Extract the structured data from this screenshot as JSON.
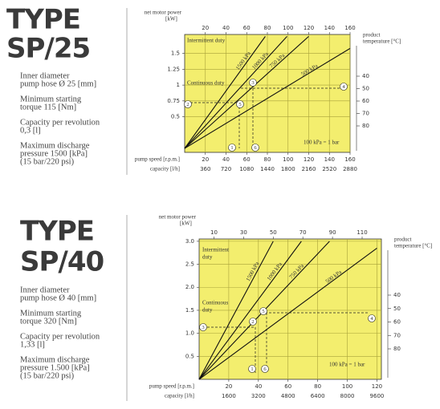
{
  "sections": [
    {
      "title": [
        "TYPE",
        "SP/25"
      ],
      "specs": [
        [
          "Inner diameter",
          "pump hose Ø 25 [mm]"
        ],
        [
          "Minimum starting",
          "torque 115 [Nm]"
        ],
        [
          "Capacity per revolution",
          "0,3 [l]"
        ],
        [
          "Maximum discharge",
          "pressure 1500 [kPa]",
          "(15 bar/220 psi)"
        ]
      ],
      "chart": {
        "power_label": "net motor power",
        "power_unit": "[kW]",
        "xlim": [
          0,
          160
        ],
        "ylim": [
          0,
          1.8
        ],
        "yticks": [
          0.5,
          0.75,
          1,
          1.25,
          1.5
        ],
        "top_ticks": [
          20,
          40,
          60,
          80,
          100,
          120,
          140,
          160
        ],
        "speed_label": "pump speed [r.p.m.]",
        "xticks": [
          20,
          40,
          60,
          80,
          100,
          120,
          140,
          160
        ],
        "capacity_label": "capacity [l/h]",
        "capacity_ticks": [
          360,
          720,
          1080,
          1440,
          1800,
          2160,
          2520,
          2880
        ],
        "temp_label": "product",
        "temp_unit": "temperature [°C]",
        "temp_ticks": [
          40,
          50,
          60,
          70,
          80
        ],
        "zones": [
          [
            "Intermittent duty"
          ],
          [
            "Continuous duty"
          ]
        ],
        "note": "100 kPa = 1 bar",
        "lines": [
          {
            "label": "1500 kPa",
            "x": 78,
            "y": 1.77
          },
          {
            "label": "1000 kPa",
            "x": 99,
            "y": 1.77
          },
          {
            "label": "750 kPa",
            "x": 120,
            "y": 1.77
          },
          {
            "label": "500 kPa",
            "x": 160,
            "y": 1.58
          }
        ],
        "markers": [
          "1",
          "2",
          "3",
          "4",
          "5",
          "6"
        ]
      }
    },
    {
      "title": [
        "TYPE",
        "SP/40"
      ],
      "specs": [
        [
          "Inner diameter",
          "pump hose Ø 40 [mm]"
        ],
        [
          "Minimum starting",
          "torque 320 [Nm]"
        ],
        [
          "Capacity per revolution",
          "1,33 [l]"
        ],
        [
          "Maximum discharge",
          "pressure 1.500 [kPa]",
          "(15 bar/220 psi)"
        ]
      ],
      "chart": {
        "power_label": "net motor power",
        "power_unit": "[kW]",
        "xlim": [
          0,
          123
        ],
        "ylim": [
          0,
          3.05
        ],
        "yticks": [
          {
            "value": 0.5,
            "label": "0.5"
          },
          {
            "value": 1,
            "label": "1.0"
          },
          {
            "value": 1.5,
            "label": "1.5"
          },
          {
            "value": 2,
            "label": "2.0"
          },
          {
            "value": 2.5,
            "label": "2.5"
          },
          {
            "value": 3,
            "label": "3.0"
          }
        ],
        "top_ticks": [
          10,
          30,
          50,
          70,
          90,
          110
        ],
        "speed_label": "pump speed [r.p.m.]",
        "xticks": [
          20,
          40,
          60,
          80,
          100,
          120
        ],
        "capacity_label": "capacity [l/h]",
        "capacity_ticks": [
          1600,
          3200,
          4800,
          6400,
          8000,
          9600
        ],
        "temp_label": "product",
        "temp_unit": "temperature [°C]",
        "temp_ticks": [
          40,
          50,
          60,
          70,
          80
        ],
        "zones": [
          [
            "Intermittent",
            "duty"
          ],
          [
            "Continuous",
            "duty"
          ]
        ],
        "note": "100 kPa = 1 bar",
        "lines": [
          {
            "label": "1500 kPa",
            "x": 50,
            "y": 3.0
          },
          {
            "label": "1000 kPa",
            "x": 69,
            "y": 3.0
          },
          {
            "label": "750 kPa",
            "x": 88,
            "y": 3.0
          },
          {
            "label": "500 kPa",
            "x": 120,
            "y": 2.85
          }
        ],
        "markers": [
          "1",
          "2",
          "3",
          "4",
          "5",
          "6"
        ]
      }
    }
  ]
}
